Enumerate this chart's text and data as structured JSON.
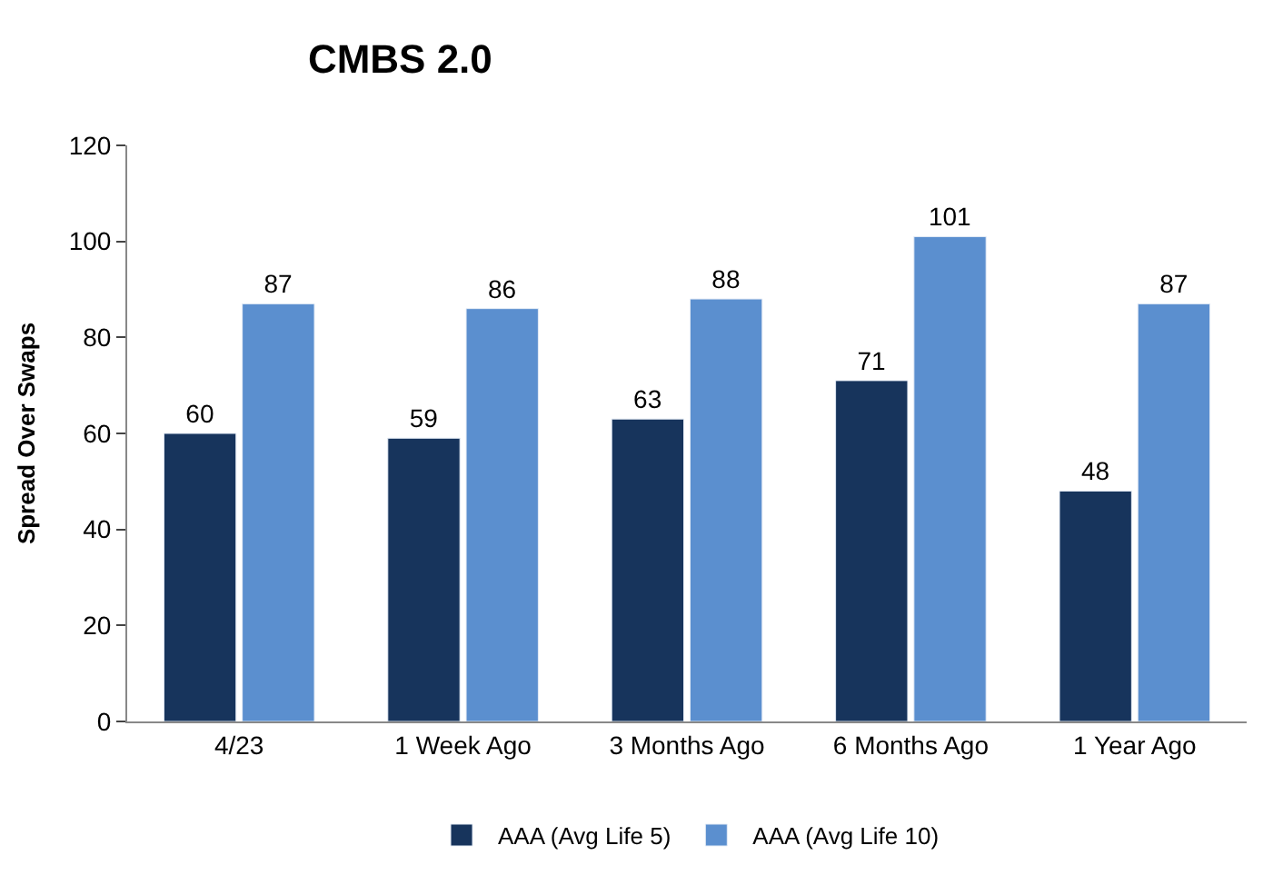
{
  "chart_data": {
    "type": "bar",
    "title": "CMBS 2.0",
    "ylabel": "Spread Over Swaps",
    "categories": [
      "4/23",
      "1 Week Ago",
      "3 Months Ago",
      "6 Months Ago",
      "1 Year Ago"
    ],
    "series": [
      {
        "name": "AAA (Avg Life 5)",
        "color": "#17345c",
        "values": [
          60,
          59,
          63,
          71,
          48
        ]
      },
      {
        "name": "AAA (Avg Life 10)",
        "color": "#5b8fcf",
        "values": [
          87,
          86,
          88,
          101,
          87
        ]
      }
    ],
    "ylim": [
      0,
      120
    ],
    "yticks": [
      0,
      20,
      40,
      60,
      80,
      100,
      120
    ],
    "legend": "bottom",
    "data_labels": true
  }
}
